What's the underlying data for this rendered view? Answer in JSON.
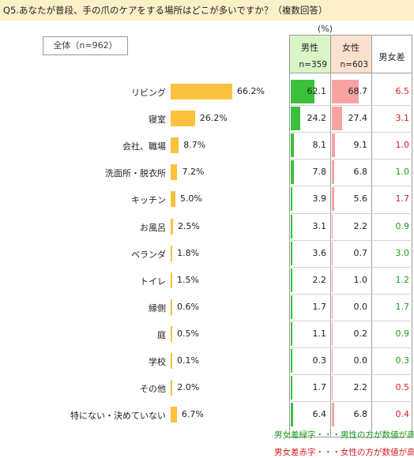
{
  "question": "Q5.あなたが普段、手の爪のケアをする場所はどこが多いですか？（複数回答）",
  "total_label": "全体（n=962）",
  "unit_label": "(%)",
  "table_header": {
    "male": "男性",
    "male_n": "n=359",
    "female": "女性",
    "female_n": "n=603",
    "diff": "男女差"
  },
  "colors": {
    "bar": "#fcc03f",
    "male": "#3cc03c",
    "female": "#f9a2a2",
    "green_text": "#1f9a1f",
    "red_text": "#d21e1e",
    "header_male": "#d9f4c6",
    "header_female": "#fbe0cf"
  },
  "chart_data": {
    "type": "bar",
    "categories": [
      "リビング",
      "寝室",
      "会社、職場",
      "洗面所・脱衣所",
      "キッチン",
      "お風呂",
      "ベランダ",
      "トイレ",
      "縁側",
      "庭",
      "学校",
      "その他",
      "特にない・決めていない"
    ],
    "series": [
      {
        "name": "全体（n=962）",
        "values": [
          66.2,
          26.2,
          8.7,
          7.2,
          5.0,
          2.5,
          1.8,
          1.5,
          0.6,
          0.5,
          0.1,
          2.0,
          6.7
        ]
      },
      {
        "name": "男性",
        "values": [
          62.1,
          24.2,
          8.1,
          7.8,
          3.9,
          3.1,
          3.6,
          2.2,
          1.7,
          1.1,
          0.3,
          1.7,
          6.4
        ]
      },
      {
        "name": "女性",
        "values": [
          68.7,
          27.4,
          9.1,
          6.8,
          5.6,
          2.2,
          0.7,
          1.0,
          0.0,
          0.2,
          0.0,
          2.2,
          6.8
        ]
      },
      {
        "name": "男女差",
        "values": [
          6.5,
          3.1,
          1.0,
          1.0,
          1.7,
          0.9,
          3.0,
          1.2,
          1.7,
          0.9,
          0.3,
          0.5,
          0.4
        ]
      }
    ],
    "labels": {
      "total": [
        "66.2%",
        "26.2%",
        "8.7%",
        "7.2%",
        "5.0%",
        "2.5%",
        "1.8%",
        "1.5%",
        "0.6%",
        "0.5%",
        "0.1%",
        "2.0%",
        "6.7%"
      ],
      "male": [
        "62.1",
        "24.2",
        "8.1",
        "7.8",
        "3.9",
        "3.1",
        "3.6",
        "2.2",
        "1.7",
        "1.1",
        "0.3",
        "1.7",
        "6.4"
      ],
      "female": [
        "68.7",
        "27.4",
        "9.1",
        "6.8",
        "5.6",
        "2.2",
        "0.7",
        "1.0",
        "0.0",
        "0.2",
        "0.0",
        "2.2",
        "6.8"
      ],
      "diff": [
        "6.5",
        "3.1",
        "1.0",
        "1.0",
        "1.7",
        "0.9",
        "3.0",
        "1.2",
        "1.7",
        "0.9",
        "0.3",
        "0.5",
        "0.4"
      ]
    },
    "diff_color": [
      "red",
      "red",
      "red",
      "green",
      "red",
      "green",
      "green",
      "green",
      "green",
      "green",
      "green",
      "red",
      "red"
    ]
  },
  "notes": {
    "green": "男女差緑字・・・男性の方が数値が高い",
    "red": "男女差赤字・・・女性の方が数値が高い"
  }
}
